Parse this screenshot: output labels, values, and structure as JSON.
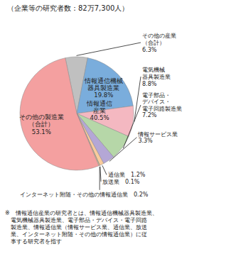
{
  "chart_data": {
    "type": "pie",
    "title": "（企業等の研究者数：82万7,300人）",
    "categories": [
      "その他の産業\n（合計）\n6.3%",
      "情報通信機械\n器具製造業\n19.8%",
      "電気機械\n器具製造業\n8.8%",
      "電子部品・\nデバイス・\n電子回路製造業\n7.2%",
      "情報サービス業\n3.3%",
      "通信業　1.2%",
      "放送業　0.1%",
      "インターネット附随・その他の情報通信業　0.2%",
      "その他の製造業\n（合計）\n53.1%"
    ],
    "values": [
      6.3,
      19.8,
      8.8,
      7.2,
      3.3,
      1.2,
      0.1,
      0.2,
      53.1
    ],
    "colors": [
      "#c0c0c0",
      "#7aaddc",
      "#f4b8c1",
      "#b6d7a8",
      "#b4a7d6",
      "#f9cb9c",
      "#e06666",
      "#ffe599",
      "#f4a0a0"
    ],
    "annotations": [
      "情報通信\n産業\n40.5%"
    ],
    "note": "※　情報通信産業の研究者とは、情報通信機械器具製造業、\n　電気機械器具製造業、電子部品・デバイス・電子回路\n　製造業、情報通信業（情報サービス業、通信業、放送\n　業、インターネット附随・その他の情報通信業）に従\n　事する研究者を指す"
  }
}
